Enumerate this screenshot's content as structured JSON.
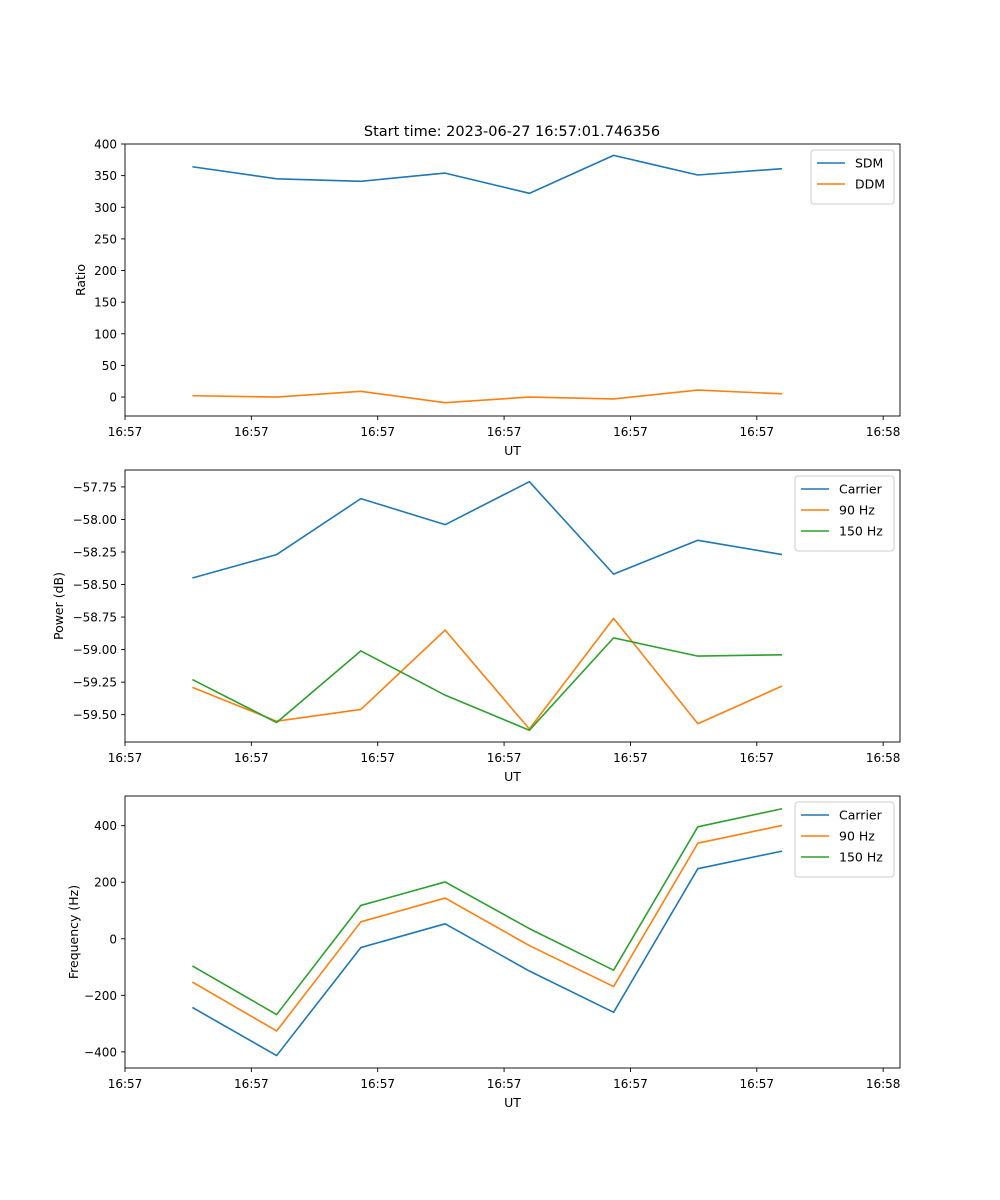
{
  "figure": {
    "title": "Start time: 2023-06-27 16:57:01.746356"
  },
  "colors": {
    "blue": "#1f77b4",
    "orange": "#ff7f0e",
    "green": "#2ca02c"
  },
  "chart_data": [
    {
      "type": "line",
      "title": "Start time: 2023-06-27 16:57:01.746356",
      "xlabel": "UT",
      "ylabel": "Ratio",
      "x": [
        1,
        2,
        3,
        4,
        5,
        6,
        7,
        8
      ],
      "xlim": [
        0.2,
        9.4
      ],
      "xticks": [
        0.2,
        1.7,
        3.2,
        4.7,
        6.2,
        7.7,
        9.2
      ],
      "xtick_labels": [
        "16:57",
        "16:57",
        "16:57",
        "16:57",
        "16:57",
        "16:57",
        "16:58"
      ],
      "ylim": [
        -30,
        400
      ],
      "yticks": [
        0,
        50,
        100,
        150,
        200,
        250,
        300,
        350,
        400
      ],
      "ytick_labels": [
        "0",
        "50",
        "100",
        "150",
        "200",
        "250",
        "300",
        "350",
        "400"
      ],
      "legend": "top-right",
      "grid": false,
      "series": [
        {
          "name": "SDM",
          "color": "#1f77b4",
          "values": [
            364,
            345,
            341,
            354,
            322,
            382,
            351,
            361
          ]
        },
        {
          "name": "DDM",
          "color": "#ff7f0e",
          "values": [
            2,
            0,
            9,
            -9,
            0,
            -3,
            11,
            5
          ]
        }
      ]
    },
    {
      "type": "line",
      "title": "",
      "xlabel": "UT",
      "ylabel": "Power (dB)",
      "x": [
        1,
        2,
        3,
        4,
        5,
        6,
        7,
        8
      ],
      "xlim": [
        0.2,
        9.4
      ],
      "xticks": [
        0.2,
        1.7,
        3.2,
        4.7,
        6.2,
        7.7,
        9.2
      ],
      "xtick_labels": [
        "16:57",
        "16:57",
        "16:57",
        "16:57",
        "16:57",
        "16:57",
        "16:58"
      ],
      "ylim": [
        -59.71,
        -57.62
      ],
      "yticks": [
        -59.5,
        -59.25,
        -59.0,
        -58.75,
        -58.5,
        -58.25,
        -58.0,
        -57.75
      ],
      "ytick_labels": [
        "−59.50",
        "−59.25",
        "−59.00",
        "−58.75",
        "−58.50",
        "−58.25",
        "−58.00",
        "−57.75"
      ],
      "legend": "top-right",
      "grid": false,
      "series": [
        {
          "name": "Carrier",
          "color": "#1f77b4",
          "values": [
            -58.45,
            -58.27,
            -57.84,
            -58.04,
            -57.71,
            -58.42,
            -58.16,
            -58.27
          ]
        },
        {
          "name": "90 Hz",
          "color": "#ff7f0e",
          "values": [
            -59.29,
            -59.55,
            -59.46,
            -58.85,
            -59.61,
            -58.76,
            -59.57,
            -59.28
          ]
        },
        {
          "name": "150 Hz",
          "color": "#2ca02c",
          "values": [
            -59.23,
            -59.56,
            -59.01,
            -59.35,
            -59.62,
            -58.91,
            -59.05,
            -59.04
          ]
        }
      ]
    },
    {
      "type": "line",
      "title": "",
      "xlabel": "UT",
      "ylabel": "Frequency (Hz)",
      "x": [
        1,
        2,
        3,
        4,
        5,
        6,
        7,
        8
      ],
      "xlim": [
        0.2,
        9.4
      ],
      "xticks": [
        0.2,
        1.7,
        3.2,
        4.7,
        6.2,
        7.7,
        9.2
      ],
      "xtick_labels": [
        "16:57",
        "16:57",
        "16:57",
        "16:57",
        "16:57",
        "16:57",
        "16:58"
      ],
      "ylim": [
        -457,
        505
      ],
      "yticks": [
        -400,
        -200,
        0,
        200,
        400
      ],
      "ytick_labels": [
        "−400",
        "−200",
        "0",
        "200",
        "400"
      ],
      "legend": "top-right",
      "grid": false,
      "series": [
        {
          "name": "Carrier",
          "color": "#1f77b4",
          "values": [
            -243,
            -413,
            -31,
            53,
            -114,
            -260,
            248,
            310
          ]
        },
        {
          "name": "90 Hz",
          "color": "#ff7f0e",
          "values": [
            -153,
            -326,
            60,
            144,
            -24,
            -169,
            338,
            401
          ]
        },
        {
          "name": "150 Hz",
          "color": "#2ca02c",
          "values": [
            -96,
            -268,
            118,
            201,
            36,
            -111,
            396,
            460
          ]
        }
      ]
    }
  ]
}
